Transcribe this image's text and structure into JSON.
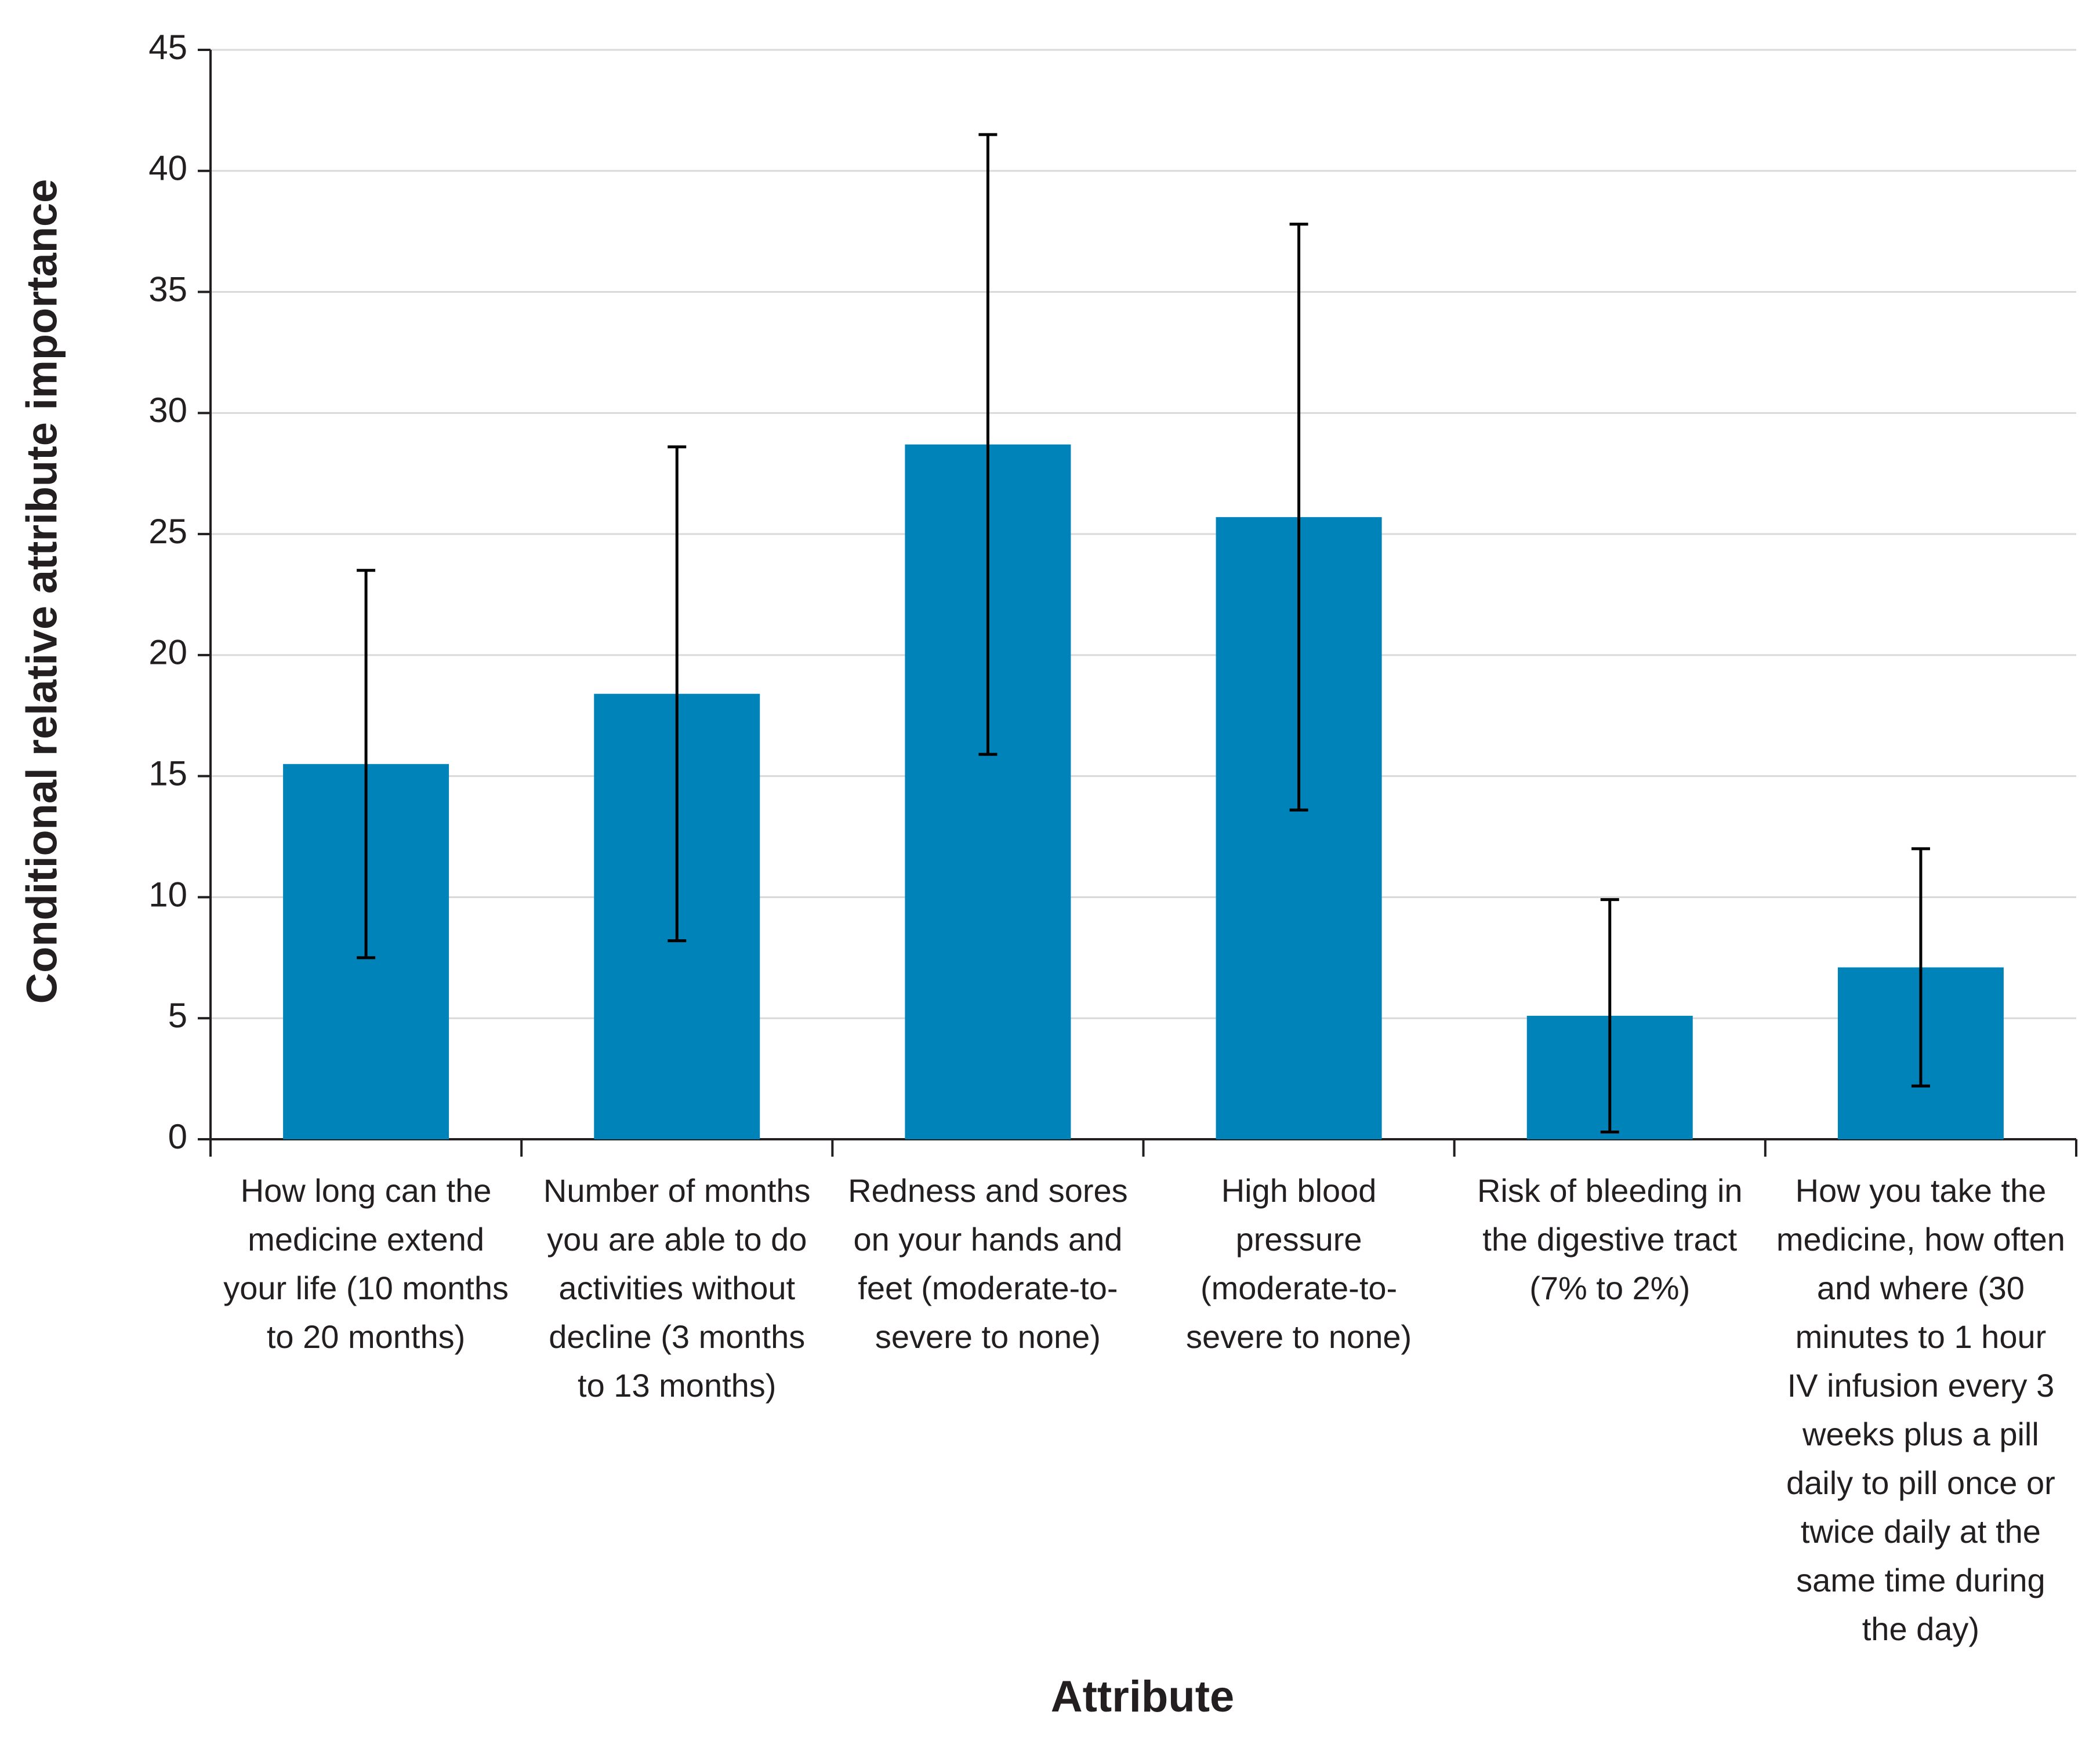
{
  "chart_data": {
    "type": "bar",
    "x_label": "Attribute",
    "y_label": "Conditional relative attribute importance",
    "categories": [
      "How long can the medicine extend your life (10 months to 20 months)",
      "Number of months you are able to do activities without decline (3 months to 13 months)",
      "Redness and sores on your hands and feet (moderate-to-severe to none)",
      "High blood pressure (moderate-to-severe to none)",
      "Risk of bleeding in the digestive tract (7% to 2%)",
      "How you take the medicine, how often and where (30 minutes to 1 hour IV infusion every 3 weeks plus a pill daily to pill once or twice daily at the same time during the day)"
    ],
    "values": [
      15.5,
      18.4,
      28.7,
      25.7,
      5.1,
      7.1
    ],
    "errors": [
      8,
      10.2,
      12.8,
      12.1,
      4.8,
      4.9
    ],
    "color": "#0083b8",
    "ylim": [
      0,
      45
    ],
    "yticks": [
      0,
      5,
      10,
      15,
      20,
      25,
      30,
      35,
      40,
      45
    ],
    "grid": true
  }
}
